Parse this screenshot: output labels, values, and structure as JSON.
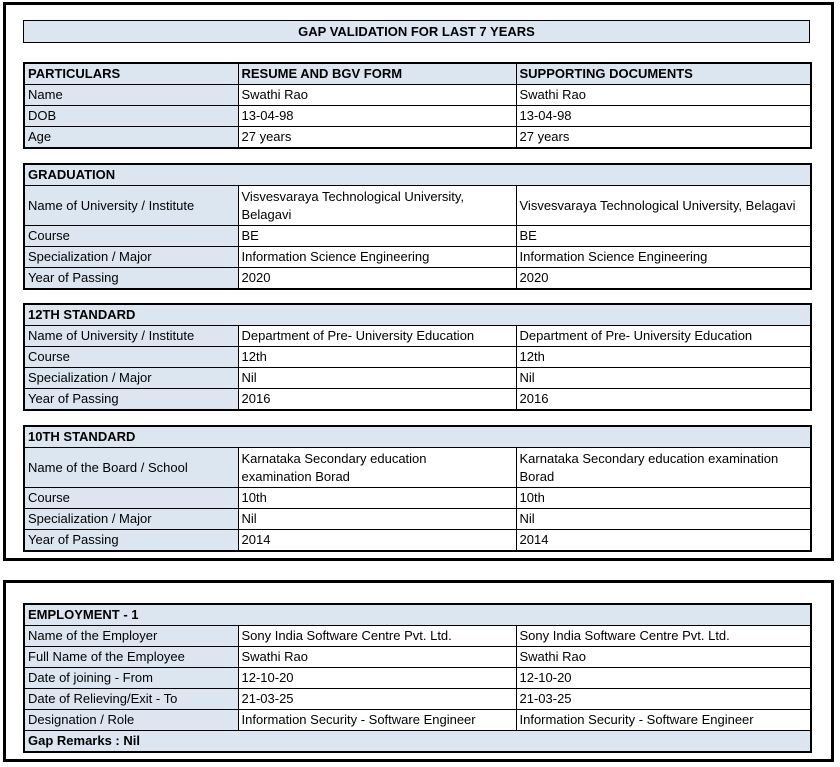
{
  "title": "GAP VALIDATION FOR LAST 7 YEARS",
  "colors": {
    "highlight_bg": "#dce6f1",
    "border": "#000000",
    "page_bg": "#ffffff"
  },
  "particulars": {
    "headers": {
      "col1": "PARTICULARS",
      "col2": "RESUME AND BGV FORM",
      "col3": "SUPPORTING DOCUMENTS"
    },
    "rows": [
      {
        "label": "Name",
        "resume": "Swathi Rao",
        "supporting": "Swathi Rao"
      },
      {
        "label": "DOB",
        "resume": "13-04-98",
        "supporting": "13-04-98"
      },
      {
        "label": "Age",
        "resume": "27 years",
        "supporting": "27 years"
      }
    ]
  },
  "sections": [
    {
      "title": "GRADUATION",
      "rows": [
        {
          "label": "Name of University / Institute",
          "resume": "Visvesvaraya Technological University, Belagavi",
          "supporting": "Visvesvaraya Technological University, Belagavi"
        },
        {
          "label": "Course",
          "resume": "BE",
          "supporting": "BE"
        },
        {
          "label": "Specialization / Major",
          "resume": "Information Science Engineering",
          "supporting": "Information Science Engineering"
        },
        {
          "label": "Year of Passing",
          "resume": "2020",
          "supporting": "2020"
        }
      ]
    },
    {
      "title": "12TH STANDARD",
      "rows": [
        {
          "label": "Name of University / Institute",
          "resume": "Department of Pre- University Education",
          "supporting": "Department of Pre- University Education"
        },
        {
          "label": "Course",
          "resume": "12th",
          "supporting": "12th"
        },
        {
          "label": "Specialization / Major",
          "resume": "Nil",
          "supporting": "Nil"
        },
        {
          "label": "Year of Passing",
          "resume": "2016",
          "supporting": "2016"
        }
      ]
    },
    {
      "title": "10TH STANDARD",
      "rows": [
        {
          "label": "Name of the Board / School",
          "resume": "Karnataka Secondary education examination Borad",
          "supporting": "Karnataka Secondary education examination Borad"
        },
        {
          "label": "Course",
          "resume": "10th",
          "supporting": "10th"
        },
        {
          "label": "Specialization / Major",
          "resume": "Nil",
          "supporting": "Nil"
        },
        {
          "label": "Year of Passing",
          "resume": "2014",
          "supporting": "2014"
        }
      ]
    }
  ],
  "employment": {
    "title": "EMPLOYMENT - 1",
    "rows": [
      {
        "label": "Name of the Employer",
        "resume": "Sony India Software Centre Pvt. Ltd.",
        "supporting": "Sony India Software Centre Pvt. Ltd."
      },
      {
        "label": "Full Name of the Employee",
        "resume": "Swathi Rao",
        "supporting": "Swathi Rao"
      },
      {
        "label": "Date of joining - From",
        "resume": "12-10-20",
        "supporting": "12-10-20"
      },
      {
        "label": "Date of Relieving/Exit - To",
        "resume": "21-03-25",
        "supporting": "21-03-25"
      },
      {
        "label": "Designation / Role",
        "resume": "Information Security - Software Engineer",
        "supporting": "Information Security - Software Engineer"
      }
    ],
    "gap_remarks": "Gap Remarks : Nil"
  }
}
